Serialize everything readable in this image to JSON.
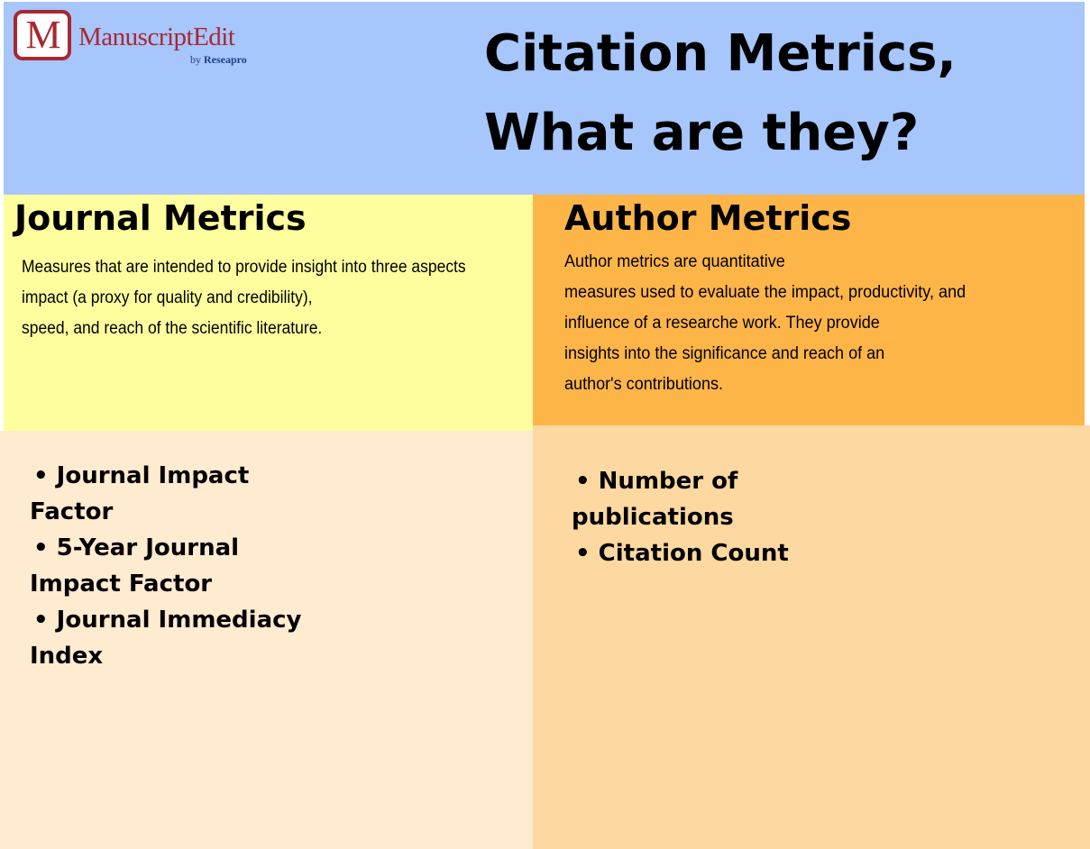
{
  "logo": {
    "mark": "M",
    "name": "ManuscriptEdit",
    "sub_by": "by",
    "sub_brand": "Reseapro"
  },
  "title": {
    "line1": "Citation Metrics,",
    "line2": "What are they?"
  },
  "journal": {
    "heading": "Journal Metrics",
    "description_lines": [
      "Measures that are intended to provide insight into three aspects",
      "impact (a proxy for quality and credibility),",
      "speed, and reach of the scientific literature."
    ],
    "list_lines": [
      "• Journal Impact",
      "Factor",
      "• 5-Year Journal",
      "Impact Factor",
      "• Journal Immediacy",
      "Index"
    ]
  },
  "author": {
    "heading": "Author Metrics",
    "description_lines": [
      "Author metrics are quantitative",
      "measures used to evaluate the impact, productivity, and",
      "influence of a researche work. They provide",
      "insights into the significance and reach of an",
      "author's contributions."
    ],
    "list_lines": [
      "• Number of",
      "publications",
      "• Citation Count"
    ]
  },
  "colors": {
    "header_bg": "#a6c6fc",
    "journal_top_bg": "#fefe9e",
    "author_top_bg": "#feb548",
    "journal_bottom_bg": "#feebd0",
    "author_bottom_bg": "#fdd8a0",
    "logo_red": "#a82831"
  }
}
